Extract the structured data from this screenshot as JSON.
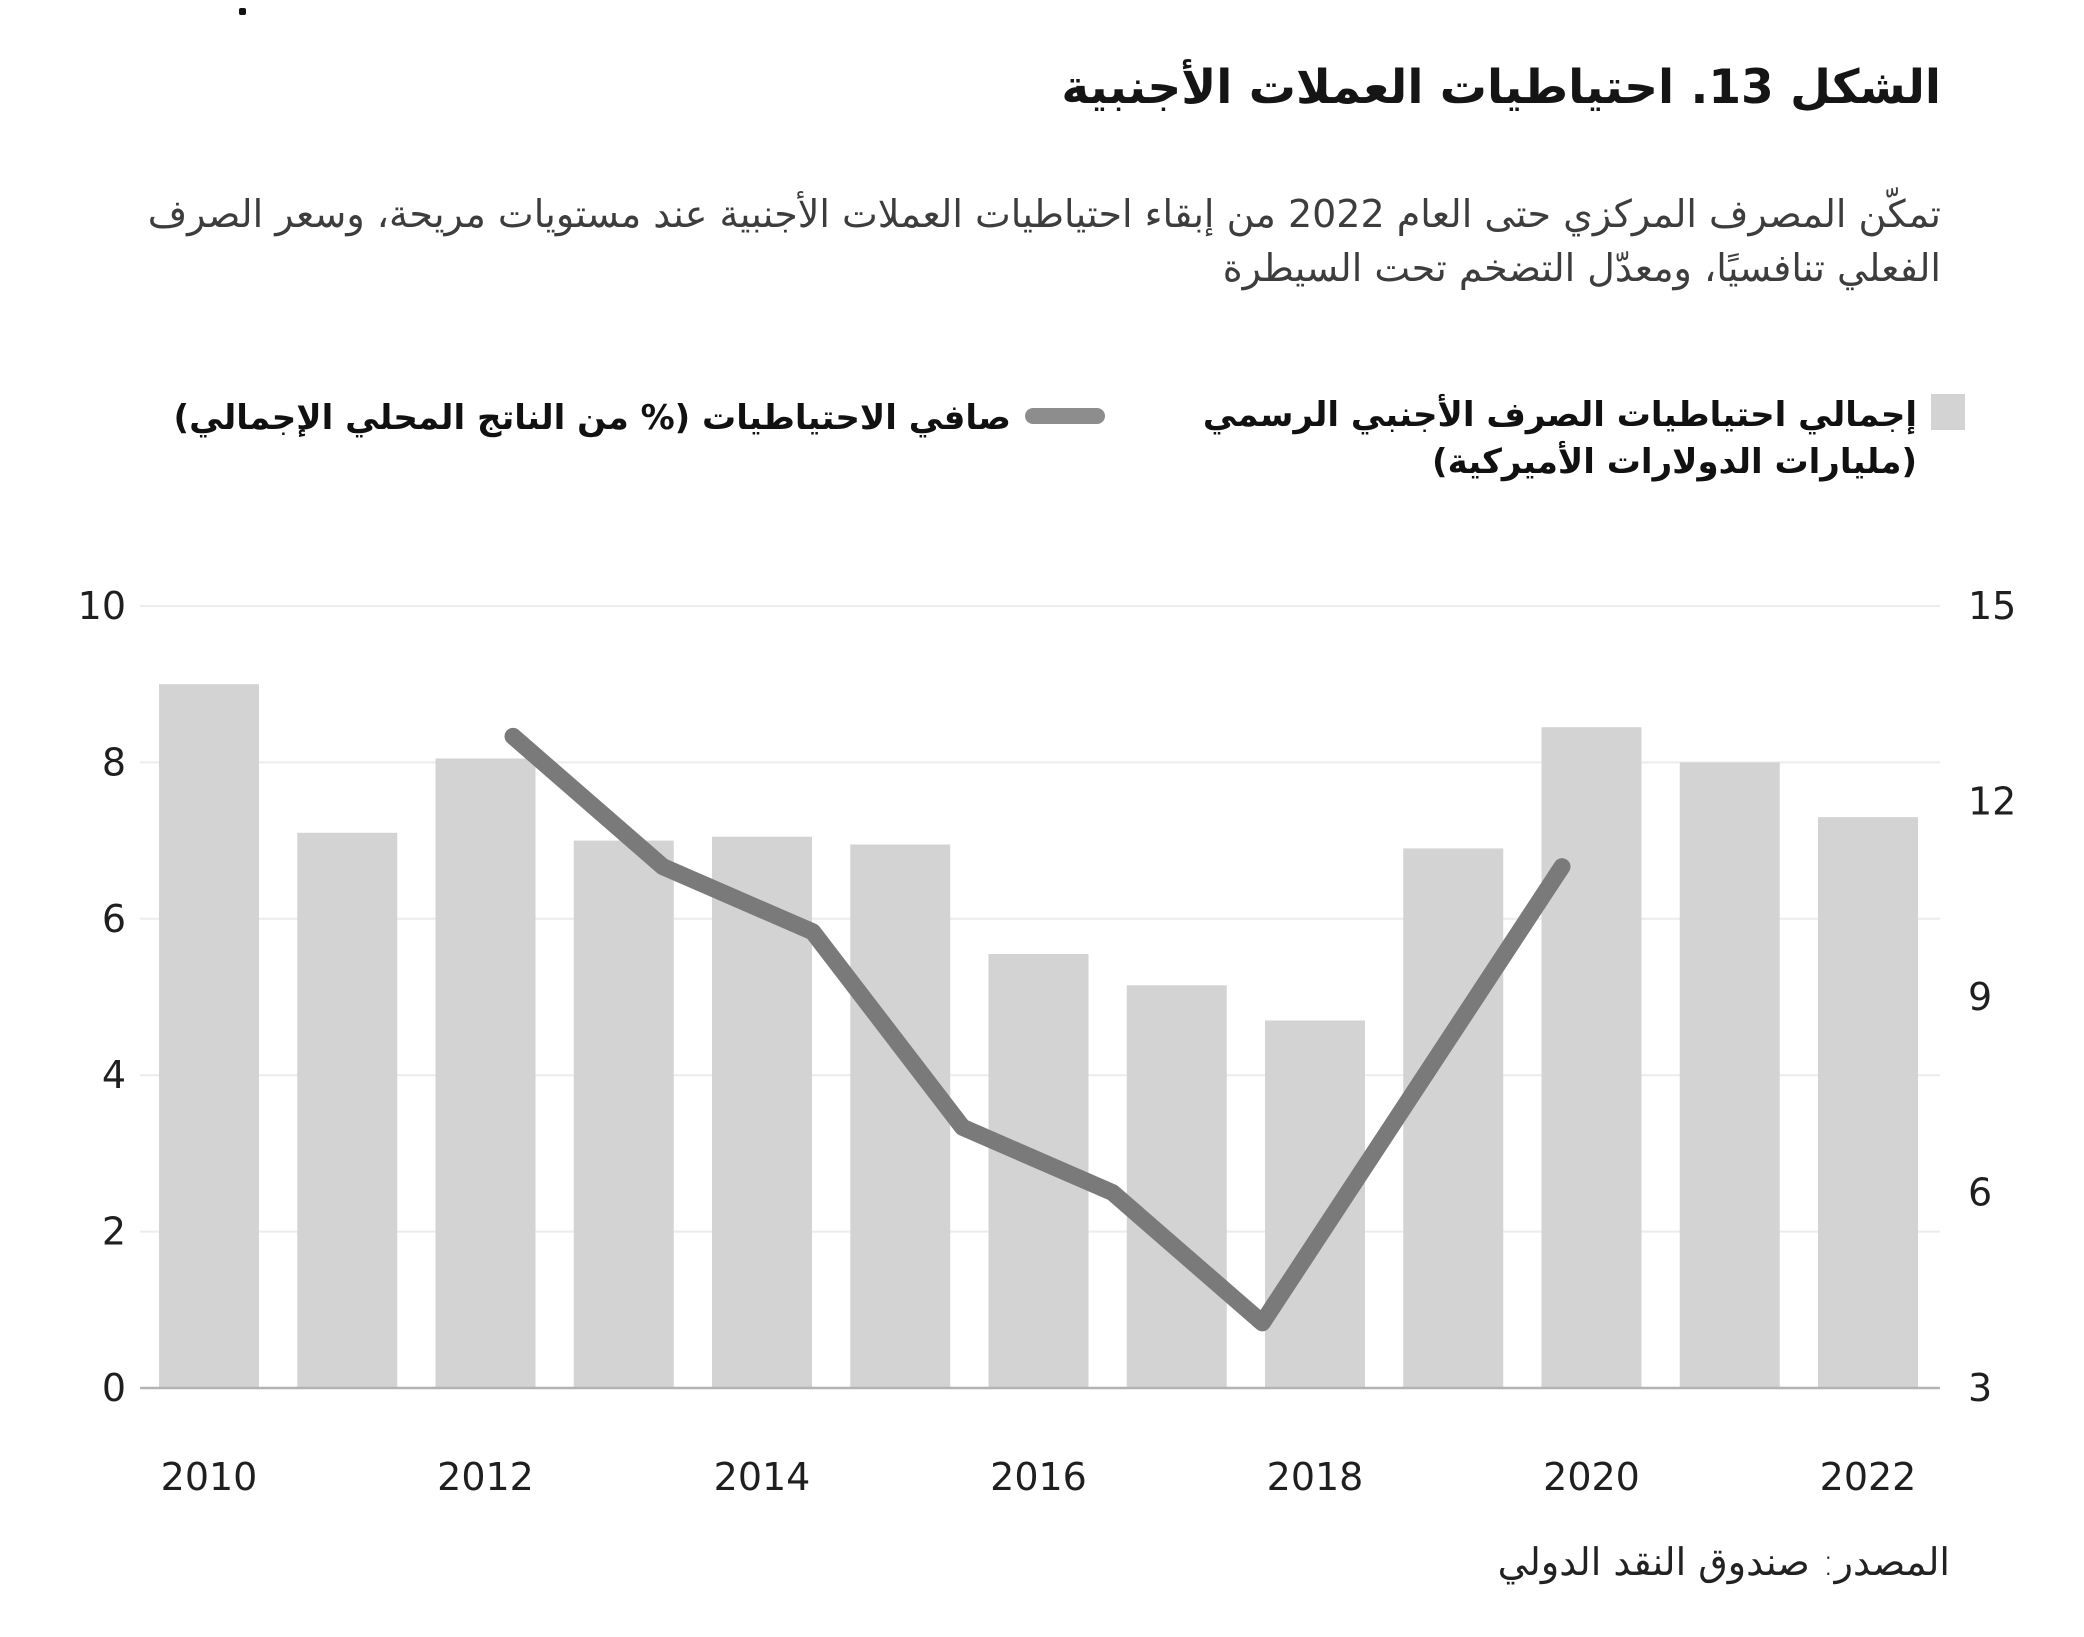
{
  "title": "الشكل 13. احتياطيات العملات الأجنبية",
  "subtitle": "تمكّن المصرف المركزي حتى العام 2022 من إبقاء احتياطيات العملات الأجنبية عند مستويات مريحة، وسعر الصرف الفعلي تنافسيًا، ومعدّل التضخم تحت السيطرة",
  "legend": {
    "bars_label_line1": "إجمالي احتياطيات الصرف الأجنبي الرسمي",
    "bars_label_line2": "(مليارات الدولارات الأميركية)",
    "line_label": "صافي الاحتياطيات (% من الناتج المحلي الإجمالي)"
  },
  "source": "المصدر: صندوق النقد الدولي",
  "colors": {
    "bar": "#d3d3d3",
    "line": "#7a7a7a",
    "grid": "#ececec",
    "axis": "#b3b3b3",
    "tick_text": "#1f1f1f",
    "legend_line_swatch": "#8d8d8d"
  },
  "chart_data": {
    "type": "bar",
    "title": "الشكل 13. احتياطيات العملات الأجنبية",
    "categories": [
      2010,
      2011,
      2012,
      2013,
      2014,
      2015,
      2016,
      2017,
      2018,
      2019,
      2020,
      2021,
      2022
    ],
    "series": [
      {
        "name": "إجمالي احتياطيات الصرف الأجنبي الرسمي (مليارات الدولارات الأميركية)",
        "type": "bar",
        "axis": "left",
        "values": [
          9.0,
          7.1,
          8.05,
          7.0,
          7.05,
          6.95,
          5.55,
          5.15,
          4.7,
          6.9,
          8.45,
          8.0,
          7.3
        ]
      },
      {
        "name": "صافي الاحتياطيات (% من الناتج المحلي الإجمالي)",
        "type": "line",
        "axis": "right",
        "years": [
          2012,
          2013,
          2014,
          2015,
          2016,
          2017,
          2018,
          2019
        ],
        "values": [
          13,
          11,
          10,
          7,
          6,
          4,
          7.5,
          11
        ]
      }
    ],
    "left_axis": {
      "ticks": [
        0,
        2,
        4,
        6,
        8,
        10
      ],
      "range": [
        0,
        10
      ]
    },
    "right_axis": {
      "ticks": [
        3,
        6,
        9,
        12,
        15
      ],
      "range": [
        3,
        15
      ]
    },
    "x_tick_labels": [
      "2010",
      "2012",
      "2014",
      "2016",
      "2018",
      "2020",
      "2022"
    ],
    "grid": true,
    "legend_position": "top"
  }
}
